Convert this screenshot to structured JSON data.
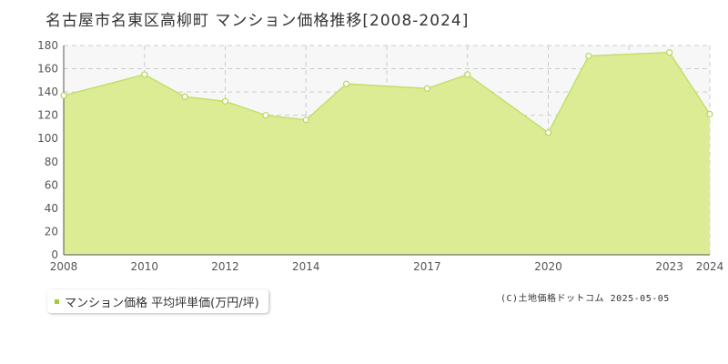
{
  "title": "名古屋市名東区高柳町 マンション価格推移[2008-2024]",
  "legend_label": "マンション価格 平均坪単価(万円/坪)",
  "copyright": "(C)土地価格ドットコム 2025-05-05",
  "colors": {
    "area_fill": "#dcec94",
    "line": "#c2e06a",
    "marker_fill": "#ffffff",
    "marker_stroke": "#b7d65a",
    "grid": "#cccccc",
    "legend_marker": "#a5cc2e"
  },
  "chart_data": {
    "type": "area",
    "title": "名古屋市名東区高柳町 マンション価格推移[2008-2024]",
    "xlabel": "",
    "ylabel": "",
    "x": [
      2008,
      2010,
      2011,
      2012,
      2013,
      2014,
      2015,
      2017,
      2018,
      2020,
      2021,
      2023,
      2024
    ],
    "series": [
      {
        "name": "マンション価格 平均坪単価(万円/坪)",
        "values": [
          137,
          155,
          136,
          132,
          120,
          116,
          147,
          143,
          155,
          105,
          171,
          174,
          121
        ]
      }
    ],
    "xlim": [
      2008,
      2024
    ],
    "ylim": [
      0,
      180
    ],
    "x_ticks": [
      2008,
      2010,
      2012,
      2014,
      2017,
      2020,
      2023,
      2024
    ],
    "x_tick_labels": [
      "2008",
      "2010",
      "2012",
      "2014",
      "2017",
      "2020",
      "2023",
      "2024"
    ],
    "x_grid": [
      2010,
      2012,
      2014,
      2016,
      2018,
      2020,
      2022,
      2024
    ],
    "y_ticks": [
      0,
      20,
      40,
      60,
      80,
      100,
      120,
      140,
      160,
      180
    ],
    "grid": true,
    "legend_position": "bottom-left"
  }
}
